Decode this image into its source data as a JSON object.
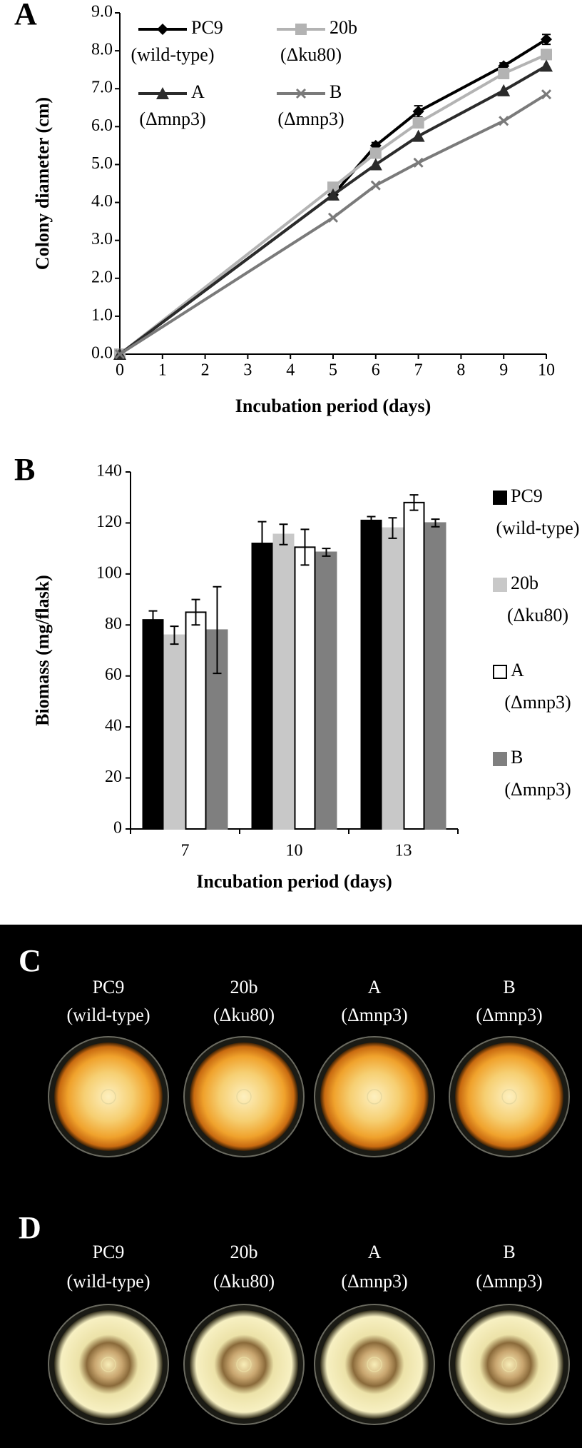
{
  "chart_data": [
    {
      "type": "line",
      "panel_label": "A",
      "x_label": "Incubation period (days)",
      "y_label": "Colony diameter (cm)",
      "x": [
        0,
        5,
        6,
        7,
        9,
        10
      ],
      "series": [
        {
          "name": "PC9 (wild-type)",
          "color": "#000000",
          "marker": "diamond",
          "values": [
            0,
            4.2,
            5.5,
            6.4,
            7.6,
            8.3
          ],
          "errors": [
            0,
            0.05,
            0.08,
            0.15,
            0.08,
            0.13
          ]
        },
        {
          "name": "20b (Δku80)",
          "color": "#b3b3b3",
          "marker": "square",
          "values": [
            0,
            4.4,
            5.3,
            6.1,
            7.4,
            7.9
          ]
        },
        {
          "name": "A (Δmnp3)",
          "color": "#2b2b2b",
          "marker": "triangle",
          "values": [
            0,
            4.2,
            5.0,
            5.75,
            6.95,
            7.6
          ]
        },
        {
          "name": "B (Δmnp3)",
          "color": "#7a7a7a",
          "marker": "x",
          "values": [
            0,
            3.6,
            4.45,
            5.05,
            6.15,
            6.85
          ]
        }
      ],
      "xlim": [
        0,
        10
      ],
      "xticks": [
        0,
        1,
        2,
        3,
        4,
        5,
        6,
        7,
        8,
        9,
        10
      ],
      "ylim": [
        0,
        9
      ],
      "yticks": [
        {
          "value": 0,
          "label": "0.0"
        },
        {
          "value": 1,
          "label": "1.0"
        },
        {
          "value": 2,
          "label": "2.0"
        },
        {
          "value": 3,
          "label": "3.0"
        },
        {
          "value": 4,
          "label": "4.0"
        },
        {
          "value": 5,
          "label": "5.0"
        },
        {
          "value": 6,
          "label": "6.0"
        },
        {
          "value": 7,
          "label": "7.0"
        },
        {
          "value": 8,
          "label": "8.0"
        },
        {
          "value": 9,
          "label": "9.0"
        }
      ],
      "legend": "upper left",
      "grid": false
    },
    {
      "type": "bar",
      "panel_label": "B",
      "x_label": "Incubation period (days)",
      "y_label": "Biomass (mg/flask)",
      "categories": [
        "7",
        "10",
        "13"
      ],
      "series": [
        {
          "name": "PC9 (wild-type)",
          "color": "#000000",
          "values": [
            82,
            112,
            121
          ],
          "errors": [
            3.5,
            8.5,
            1.5
          ]
        },
        {
          "name": "20b (Δku80)",
          "color": "#c8c8c8",
          "values": [
            76,
            115.5,
            118
          ],
          "errors": [
            3.5,
            4,
            4
          ]
        },
        {
          "name": "A (Δmnp3)",
          "color": "#ffffff",
          "values": [
            85,
            110.5,
            128
          ],
          "errors": [
            5,
            7,
            3
          ]
        },
        {
          "name": "B (Δmnp3)",
          "color": "#7f7f7f",
          "values": [
            78,
            108.5,
            120
          ],
          "errors": [
            17,
            1.5,
            1.5
          ]
        }
      ],
      "ylim": [
        0,
        140
      ],
      "yticks": [
        0,
        20,
        40,
        60,
        80,
        100,
        120,
        140
      ],
      "legend": "right",
      "grid": false
    }
  ],
  "photo_panels": [
    {
      "panel_label": "C",
      "labels": [
        [
          "PC9",
          "(wild-type)"
        ],
        [
          "20b",
          "(Δku80)"
        ],
        [
          "A",
          "(Δmnp3)"
        ],
        [
          "B",
          "(Δmnp3)"
        ]
      ]
    },
    {
      "panel_label": "D",
      "labels": [
        [
          "PC9",
          "(wild-type)"
        ],
        [
          "20b",
          "(Δku80)"
        ],
        [
          "A",
          "(Δmnp3)"
        ],
        [
          "B",
          "(Δmnp3)"
        ]
      ]
    }
  ]
}
